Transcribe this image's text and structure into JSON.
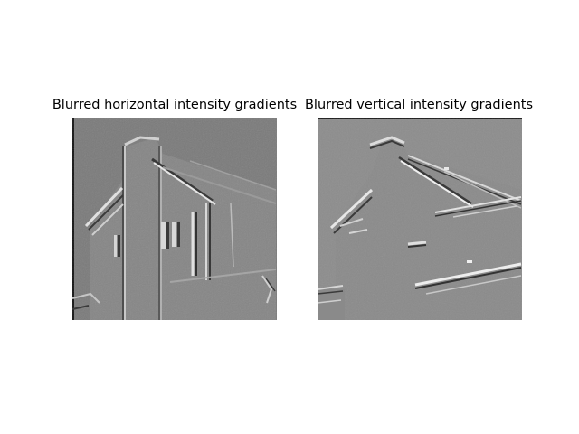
{
  "figure": {
    "background": "#ffffff",
    "panels": [
      {
        "title": "Blurred horizontal intensity gradients",
        "content": "grayscale-embossed-house-horizontal-gradient",
        "base_gray": "#7a7a7a"
      },
      {
        "title": "Blurred vertical intensity gradients",
        "content": "grayscale-embossed-house-vertical-gradient",
        "base_gray": "#8c8c8c"
      }
    ]
  }
}
